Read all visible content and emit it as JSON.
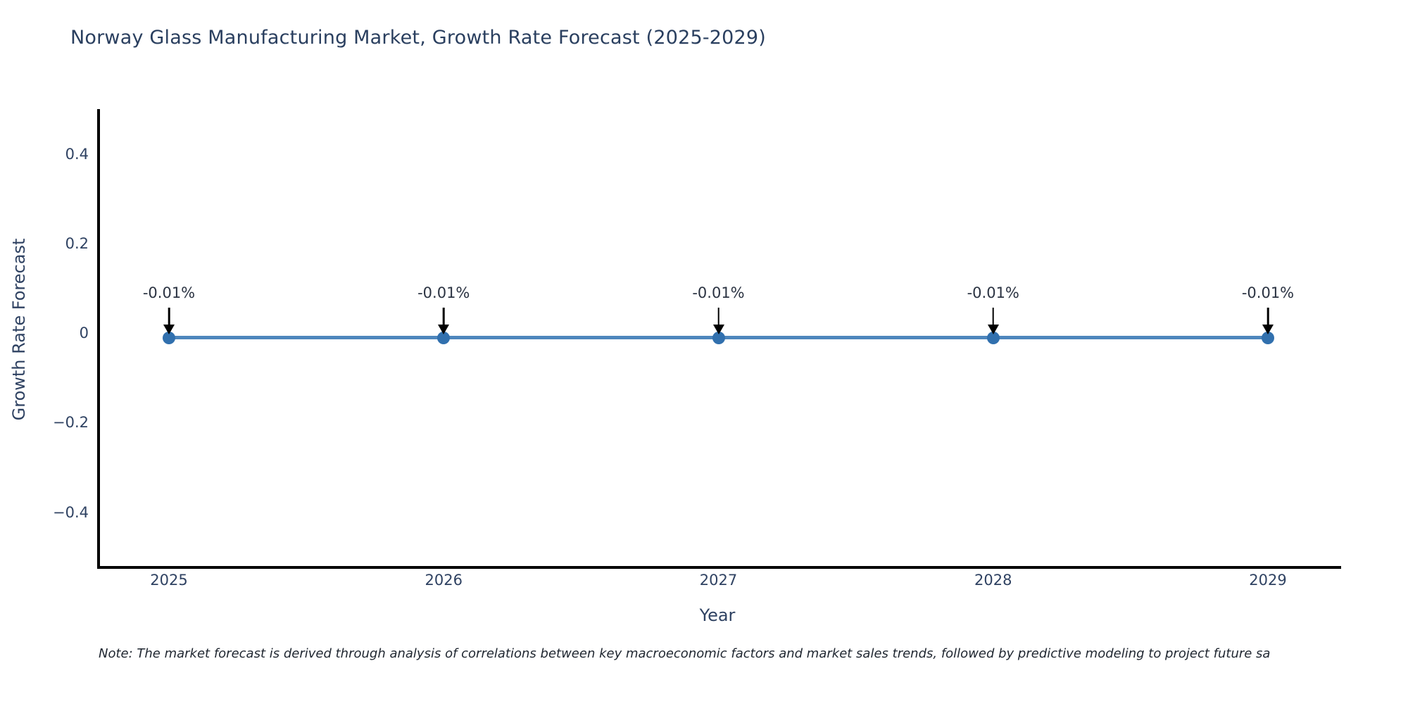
{
  "title": "Norway Glass Manufacturing Market, Growth Rate Forecast (2025-2029)",
  "note": "Note: The market forecast is derived through analysis of correlations between key macroeconomic factors and market sales trends, followed by predictive modeling to project future sa",
  "chart_data": {
    "type": "line",
    "title": "Norway Glass Manufacturing Market, Growth Rate Forecast (2025-2029)",
    "xlabel": "Year",
    "ylabel": "Growth Rate Forecast",
    "x": [
      "2025",
      "2026",
      "2027",
      "2028",
      "2029"
    ],
    "series": [
      {
        "name": "Growth Rate Forecast",
        "values": [
          -0.01,
          -0.01,
          -0.01,
          -0.01,
          -0.01
        ],
        "point_labels": [
          "-0.01%",
          "-0.01%",
          "-0.01%",
          "-0.01%",
          "-0.01%"
        ]
      }
    ],
    "y_tick_values": [
      0.4,
      0.2,
      0,
      -0.2,
      -0.4
    ],
    "y_tick_labels": [
      "0.4",
      "0.2",
      "0",
      "−0.2",
      "−0.4"
    ],
    "ylim": [
      -0.52,
      0.5
    ],
    "grid": false,
    "legend": false,
    "annotation_arrows": "down-to-point",
    "colors": {
      "line": "#4e86bd",
      "marker": "#3170ae",
      "arrow": "#000000",
      "title_text": "#2a3f5f",
      "tick_text": "#2f4262",
      "axis_line": "#000000"
    }
  }
}
